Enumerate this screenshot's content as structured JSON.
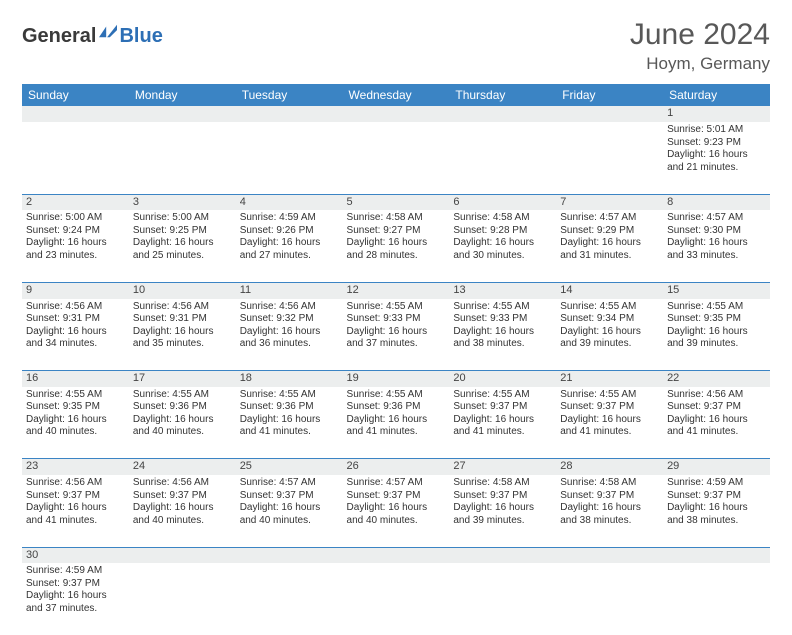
{
  "logo": {
    "part1": "General",
    "part2": "Blue"
  },
  "title": "June 2024",
  "location": "Hoym, Germany",
  "colors": {
    "header_bg": "#3b84c4",
    "header_text": "#ffffff",
    "daynum_bg": "#eceeee",
    "border": "#3b84c4",
    "title_color": "#585858",
    "logo_blue": "#2d6fb5"
  },
  "weekdays": [
    "Sunday",
    "Monday",
    "Tuesday",
    "Wednesday",
    "Thursday",
    "Friday",
    "Saturday"
  ],
  "weeks": [
    {
      "nums": [
        "",
        "",
        "",
        "",
        "",
        "",
        "1"
      ],
      "cells": [
        null,
        null,
        null,
        null,
        null,
        null,
        {
          "sunrise": "Sunrise: 5:01 AM",
          "sunset": "Sunset: 9:23 PM",
          "day1": "Daylight: 16 hours",
          "day2": "and 21 minutes."
        }
      ]
    },
    {
      "nums": [
        "2",
        "3",
        "4",
        "5",
        "6",
        "7",
        "8"
      ],
      "cells": [
        {
          "sunrise": "Sunrise: 5:00 AM",
          "sunset": "Sunset: 9:24 PM",
          "day1": "Daylight: 16 hours",
          "day2": "and 23 minutes."
        },
        {
          "sunrise": "Sunrise: 5:00 AM",
          "sunset": "Sunset: 9:25 PM",
          "day1": "Daylight: 16 hours",
          "day2": "and 25 minutes."
        },
        {
          "sunrise": "Sunrise: 4:59 AM",
          "sunset": "Sunset: 9:26 PM",
          "day1": "Daylight: 16 hours",
          "day2": "and 27 minutes."
        },
        {
          "sunrise": "Sunrise: 4:58 AM",
          "sunset": "Sunset: 9:27 PM",
          "day1": "Daylight: 16 hours",
          "day2": "and 28 minutes."
        },
        {
          "sunrise": "Sunrise: 4:58 AM",
          "sunset": "Sunset: 9:28 PM",
          "day1": "Daylight: 16 hours",
          "day2": "and 30 minutes."
        },
        {
          "sunrise": "Sunrise: 4:57 AM",
          "sunset": "Sunset: 9:29 PM",
          "day1": "Daylight: 16 hours",
          "day2": "and 31 minutes."
        },
        {
          "sunrise": "Sunrise: 4:57 AM",
          "sunset": "Sunset: 9:30 PM",
          "day1": "Daylight: 16 hours",
          "day2": "and 33 minutes."
        }
      ]
    },
    {
      "nums": [
        "9",
        "10",
        "11",
        "12",
        "13",
        "14",
        "15"
      ],
      "cells": [
        {
          "sunrise": "Sunrise: 4:56 AM",
          "sunset": "Sunset: 9:31 PM",
          "day1": "Daylight: 16 hours",
          "day2": "and 34 minutes."
        },
        {
          "sunrise": "Sunrise: 4:56 AM",
          "sunset": "Sunset: 9:31 PM",
          "day1": "Daylight: 16 hours",
          "day2": "and 35 minutes."
        },
        {
          "sunrise": "Sunrise: 4:56 AM",
          "sunset": "Sunset: 9:32 PM",
          "day1": "Daylight: 16 hours",
          "day2": "and 36 minutes."
        },
        {
          "sunrise": "Sunrise: 4:55 AM",
          "sunset": "Sunset: 9:33 PM",
          "day1": "Daylight: 16 hours",
          "day2": "and 37 minutes."
        },
        {
          "sunrise": "Sunrise: 4:55 AM",
          "sunset": "Sunset: 9:33 PM",
          "day1": "Daylight: 16 hours",
          "day2": "and 38 minutes."
        },
        {
          "sunrise": "Sunrise: 4:55 AM",
          "sunset": "Sunset: 9:34 PM",
          "day1": "Daylight: 16 hours",
          "day2": "and 39 minutes."
        },
        {
          "sunrise": "Sunrise: 4:55 AM",
          "sunset": "Sunset: 9:35 PM",
          "day1": "Daylight: 16 hours",
          "day2": "and 39 minutes."
        }
      ]
    },
    {
      "nums": [
        "16",
        "17",
        "18",
        "19",
        "20",
        "21",
        "22"
      ],
      "cells": [
        {
          "sunrise": "Sunrise: 4:55 AM",
          "sunset": "Sunset: 9:35 PM",
          "day1": "Daylight: 16 hours",
          "day2": "and 40 minutes."
        },
        {
          "sunrise": "Sunrise: 4:55 AM",
          "sunset": "Sunset: 9:36 PM",
          "day1": "Daylight: 16 hours",
          "day2": "and 40 minutes."
        },
        {
          "sunrise": "Sunrise: 4:55 AM",
          "sunset": "Sunset: 9:36 PM",
          "day1": "Daylight: 16 hours",
          "day2": "and 41 minutes."
        },
        {
          "sunrise": "Sunrise: 4:55 AM",
          "sunset": "Sunset: 9:36 PM",
          "day1": "Daylight: 16 hours",
          "day2": "and 41 minutes."
        },
        {
          "sunrise": "Sunrise: 4:55 AM",
          "sunset": "Sunset: 9:37 PM",
          "day1": "Daylight: 16 hours",
          "day2": "and 41 minutes."
        },
        {
          "sunrise": "Sunrise: 4:55 AM",
          "sunset": "Sunset: 9:37 PM",
          "day1": "Daylight: 16 hours",
          "day2": "and 41 minutes."
        },
        {
          "sunrise": "Sunrise: 4:56 AM",
          "sunset": "Sunset: 9:37 PM",
          "day1": "Daylight: 16 hours",
          "day2": "and 41 minutes."
        }
      ]
    },
    {
      "nums": [
        "23",
        "24",
        "25",
        "26",
        "27",
        "28",
        "29"
      ],
      "cells": [
        {
          "sunrise": "Sunrise: 4:56 AM",
          "sunset": "Sunset: 9:37 PM",
          "day1": "Daylight: 16 hours",
          "day2": "and 41 minutes."
        },
        {
          "sunrise": "Sunrise: 4:56 AM",
          "sunset": "Sunset: 9:37 PM",
          "day1": "Daylight: 16 hours",
          "day2": "and 40 minutes."
        },
        {
          "sunrise": "Sunrise: 4:57 AM",
          "sunset": "Sunset: 9:37 PM",
          "day1": "Daylight: 16 hours",
          "day2": "and 40 minutes."
        },
        {
          "sunrise": "Sunrise: 4:57 AM",
          "sunset": "Sunset: 9:37 PM",
          "day1": "Daylight: 16 hours",
          "day2": "and 40 minutes."
        },
        {
          "sunrise": "Sunrise: 4:58 AM",
          "sunset": "Sunset: 9:37 PM",
          "day1": "Daylight: 16 hours",
          "day2": "and 39 minutes."
        },
        {
          "sunrise": "Sunrise: 4:58 AM",
          "sunset": "Sunset: 9:37 PM",
          "day1": "Daylight: 16 hours",
          "day2": "and 38 minutes."
        },
        {
          "sunrise": "Sunrise: 4:59 AM",
          "sunset": "Sunset: 9:37 PM",
          "day1": "Daylight: 16 hours",
          "day2": "and 38 minutes."
        }
      ]
    },
    {
      "nums": [
        "30",
        "",
        "",
        "",
        "",
        "",
        ""
      ],
      "cells": [
        {
          "sunrise": "Sunrise: 4:59 AM",
          "sunset": "Sunset: 9:37 PM",
          "day1": "Daylight: 16 hours",
          "day2": "and 37 minutes."
        },
        null,
        null,
        null,
        null,
        null,
        null
      ]
    }
  ]
}
